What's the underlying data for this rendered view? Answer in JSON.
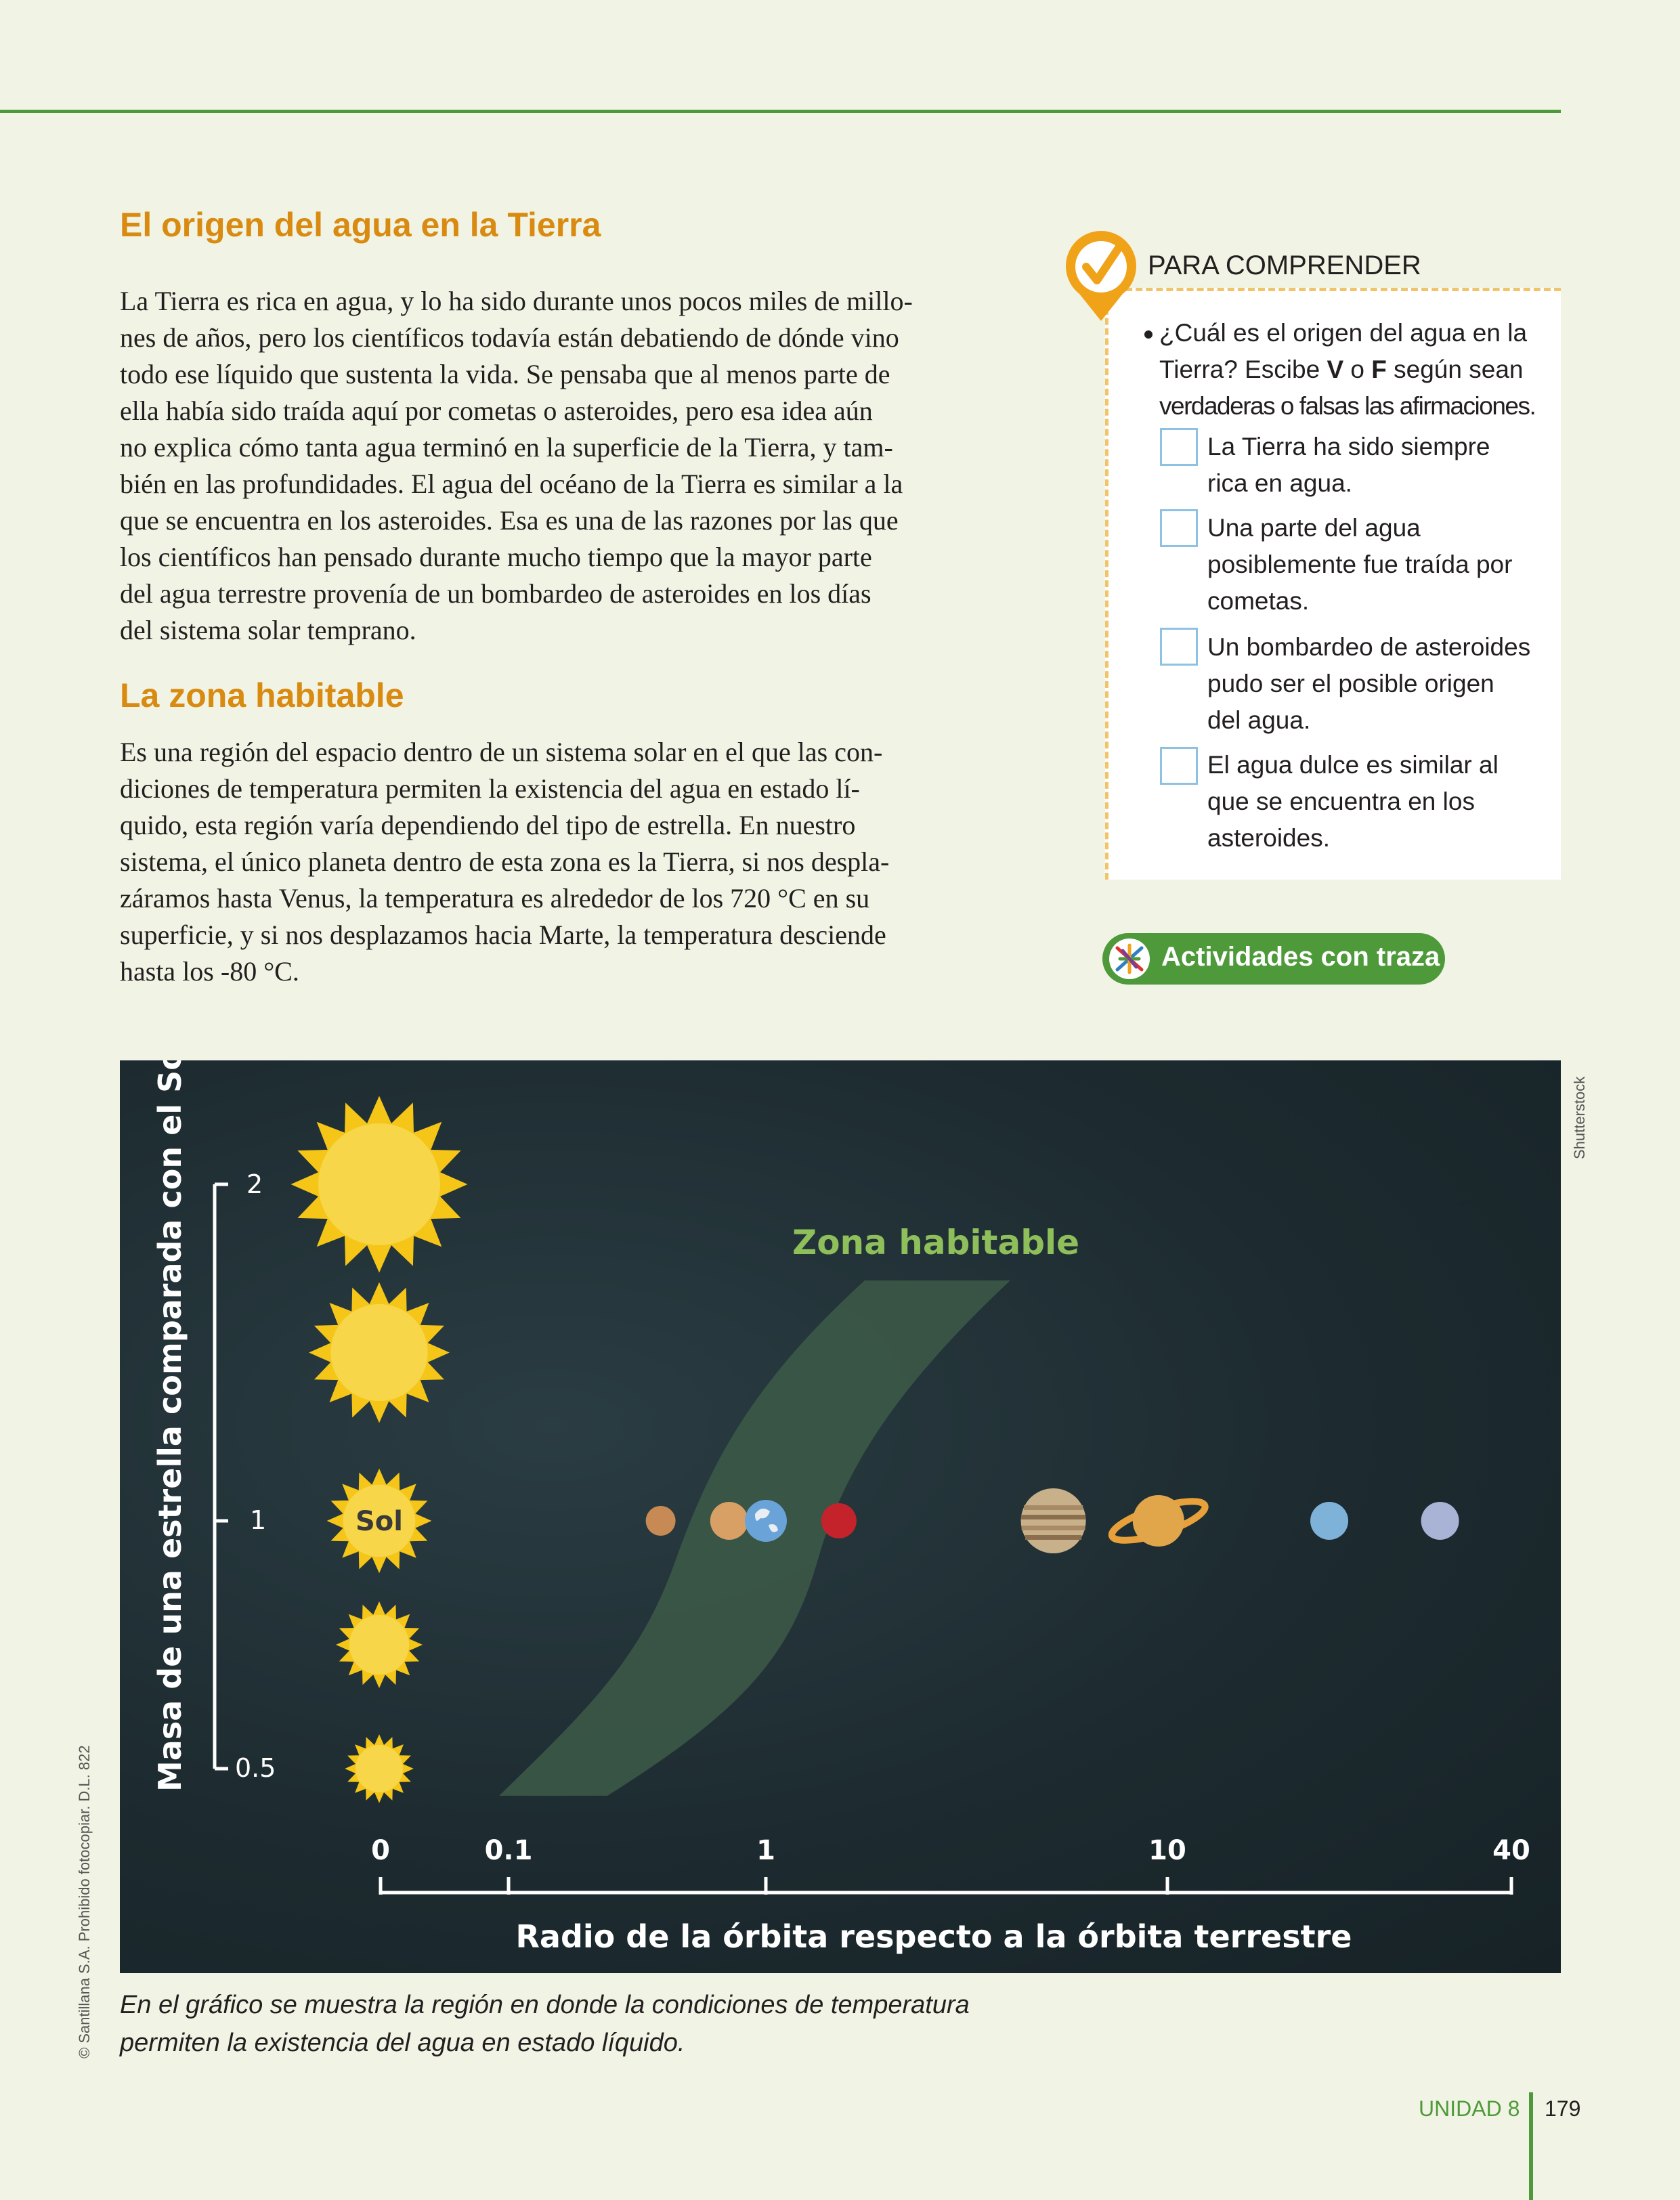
{
  "section1": {
    "heading": "El origen del agua en la Tierra",
    "lines": [
      "La Tierra es rica en agua, y lo ha sido durante unos pocos miles de millo-",
      "nes de años, pero los científicos todavía están debatiendo de dónde vino",
      "todo ese líquido que sustenta la vida. Se pensaba que al menos parte de",
      "ella había sido traída aquí por cometas o asteroides, pero esa idea aún",
      "no explica cómo tanta agua terminó en la superficie de la Tierra, y tam-",
      "bién en las profundidades. El agua del océano de la Tierra es similar a la",
      "que se encuentra en los asteroides. Esa es una de las razones por las que",
      "los científicos han pensado durante mucho tiempo que la mayor parte",
      "del agua terrestre provenía de un bombardeo de asteroides en los días",
      "del sistema solar temprano."
    ]
  },
  "section2": {
    "heading": "La zona habitable",
    "lines": [
      "Es una región del espacio dentro de un sistema solar en el que las con-",
      "diciones de temperatura permiten la existencia del agua en estado lí-",
      "quido, esta región varía dependiendo del tipo de estrella. En nuestro",
      "sistema, el único planeta dentro de esta zona es la Tierra, si nos despla-",
      "záramos hasta Venus, la temperatura es alrededor de los 720 °C en su",
      "superficie, y si nos desplazamos hacia Marte, la temperatura desciende",
      "hasta los -80 °C."
    ]
  },
  "sidebar": {
    "title": "PARA COMPRENDER",
    "question_lines": [
      "¿Cuál es el origen del agua en la",
      "Tierra? Escibe ",
      "V",
      " o ",
      "F",
      " según sean",
      "verdaderas o falsas las afirmaciones."
    ],
    "statements": [
      {
        "lines": [
          "La Tierra ha sido siempre",
          "rica en agua."
        ]
      },
      {
        "lines": [
          "Una parte del agua",
          "posiblemente fue traída por",
          "cometas."
        ]
      },
      {
        "lines": [
          "Un bombardeo de asteroides",
          "pudo ser el posible origen",
          "del agua."
        ]
      },
      {
        "lines": [
          "El agua dulce es similar al",
          "que se encuentra en los",
          "asteroides."
        ]
      }
    ],
    "activity_button": "Actividades con traza"
  },
  "chart_data": {
    "type": "scatter",
    "title": "",
    "zone_label": "Zona habitable",
    "xlabel": "Radio de la órbita respecto a la órbita terrestre",
    "ylabel": "Masa de una estrella comparada con el Sol",
    "x_ticks": [
      "0",
      "0.1",
      "1",
      "10",
      "40"
    ],
    "y_ticks": [
      "2",
      "1",
      "0.5"
    ],
    "sun_label": "Sol",
    "stars": [
      {
        "mass": 2
      },
      {
        "mass": 1.5
      },
      {
        "mass": 1
      },
      {
        "mass": 0.75
      },
      {
        "mass": 0.5
      }
    ],
    "planets": [
      {
        "name": "mercury",
        "orbit": 0.39,
        "color": "#c88a55"
      },
      {
        "name": "venus",
        "orbit": 0.72,
        "color": "#d9a066"
      },
      {
        "name": "earth",
        "orbit": 1,
        "color": "#6aa3d8"
      },
      {
        "name": "mars",
        "orbit": 1.52,
        "color": "#c4232b"
      },
      {
        "name": "jupiter",
        "orbit": 5.2,
        "color": "#c8b08a"
      },
      {
        "name": "saturn",
        "orbit": 9.5,
        "color": "#e2a64a"
      },
      {
        "name": "uranus",
        "orbit": 19.2,
        "color": "#7fb2d9"
      },
      {
        "name": "neptune",
        "orbit": 30,
        "color": "#a9b3d6"
      }
    ],
    "zone_color": "#3d5a48",
    "zone_label_color": "#8fbf5a"
  },
  "caption_lines": [
    "En el gráfico se muestra la región en donde la condiciones de temperatura",
    "permiten la existencia del agua en estado líquido."
  ],
  "credits": {
    "image": "Shutterstock",
    "publisher": "© Santillana S.A. Prohibido fotocopiar. D.L. 822"
  },
  "footer": {
    "unit": "UNIDAD 8",
    "page": "179"
  }
}
